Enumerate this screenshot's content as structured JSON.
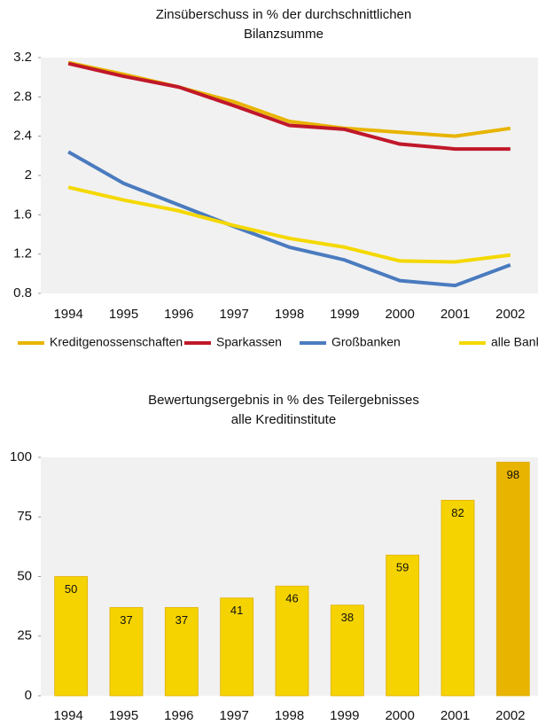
{
  "chart_data": [
    {
      "type": "line",
      "title": [
        "Zinsüberschuss in % der durchschnittlichen",
        "Bilanzsumme"
      ],
      "categories": [
        "1994",
        "1995",
        "1996",
        "1997",
        "1998",
        "1999",
        "2000",
        "2001",
        "2002"
      ],
      "series": [
        {
          "name": "Kreditgenossenschaften",
          "color": "#e8b400",
          "values": [
            3.15,
            3.03,
            2.9,
            2.75,
            2.55,
            2.48,
            2.44,
            2.4,
            2.48
          ]
        },
        {
          "name": "Sparkassen",
          "color": "#c0182a",
          "values": [
            3.14,
            3.01,
            2.9,
            2.71,
            2.51,
            2.47,
            2.32,
            2.27,
            2.27
          ]
        },
        {
          "name": "Großbanken",
          "color": "#4a7bbf",
          "values": [
            2.24,
            1.92,
            1.7,
            1.48,
            1.27,
            1.14,
            0.93,
            0.88,
            1.09
          ]
        },
        {
          "name": "alle Banken",
          "color": "#f5d800",
          "values": [
            1.88,
            1.75,
            1.64,
            1.49,
            1.36,
            1.27,
            1.13,
            1.12,
            1.19
          ]
        }
      ],
      "ylim": [
        0.8,
        3.2
      ],
      "yticks": [
        0.8,
        1.2,
        1.6,
        2.0,
        2.4,
        2.8,
        3.2
      ],
      "legend": "bottom"
    },
    {
      "type": "bar",
      "title": [
        "Bewertungsergebnis in % des Teilergebnisses",
        "alle Kreditinstitute"
      ],
      "categories": [
        "1994",
        "1995",
        "1996",
        "1997",
        "1998",
        "1999",
        "2000",
        "2001",
        "2002"
      ],
      "values": [
        50,
        37,
        37,
        41,
        46,
        38,
        59,
        82,
        98
      ],
      "colors": [
        "#f5d300",
        "#f5d300",
        "#f5d300",
        "#f5d300",
        "#f5d300",
        "#f5d300",
        "#f5d300",
        "#f5d300",
        "#e8b400"
      ],
      "ylim": [
        0,
        100
      ],
      "yticks": [
        0,
        25,
        50,
        75,
        100
      ]
    }
  ]
}
